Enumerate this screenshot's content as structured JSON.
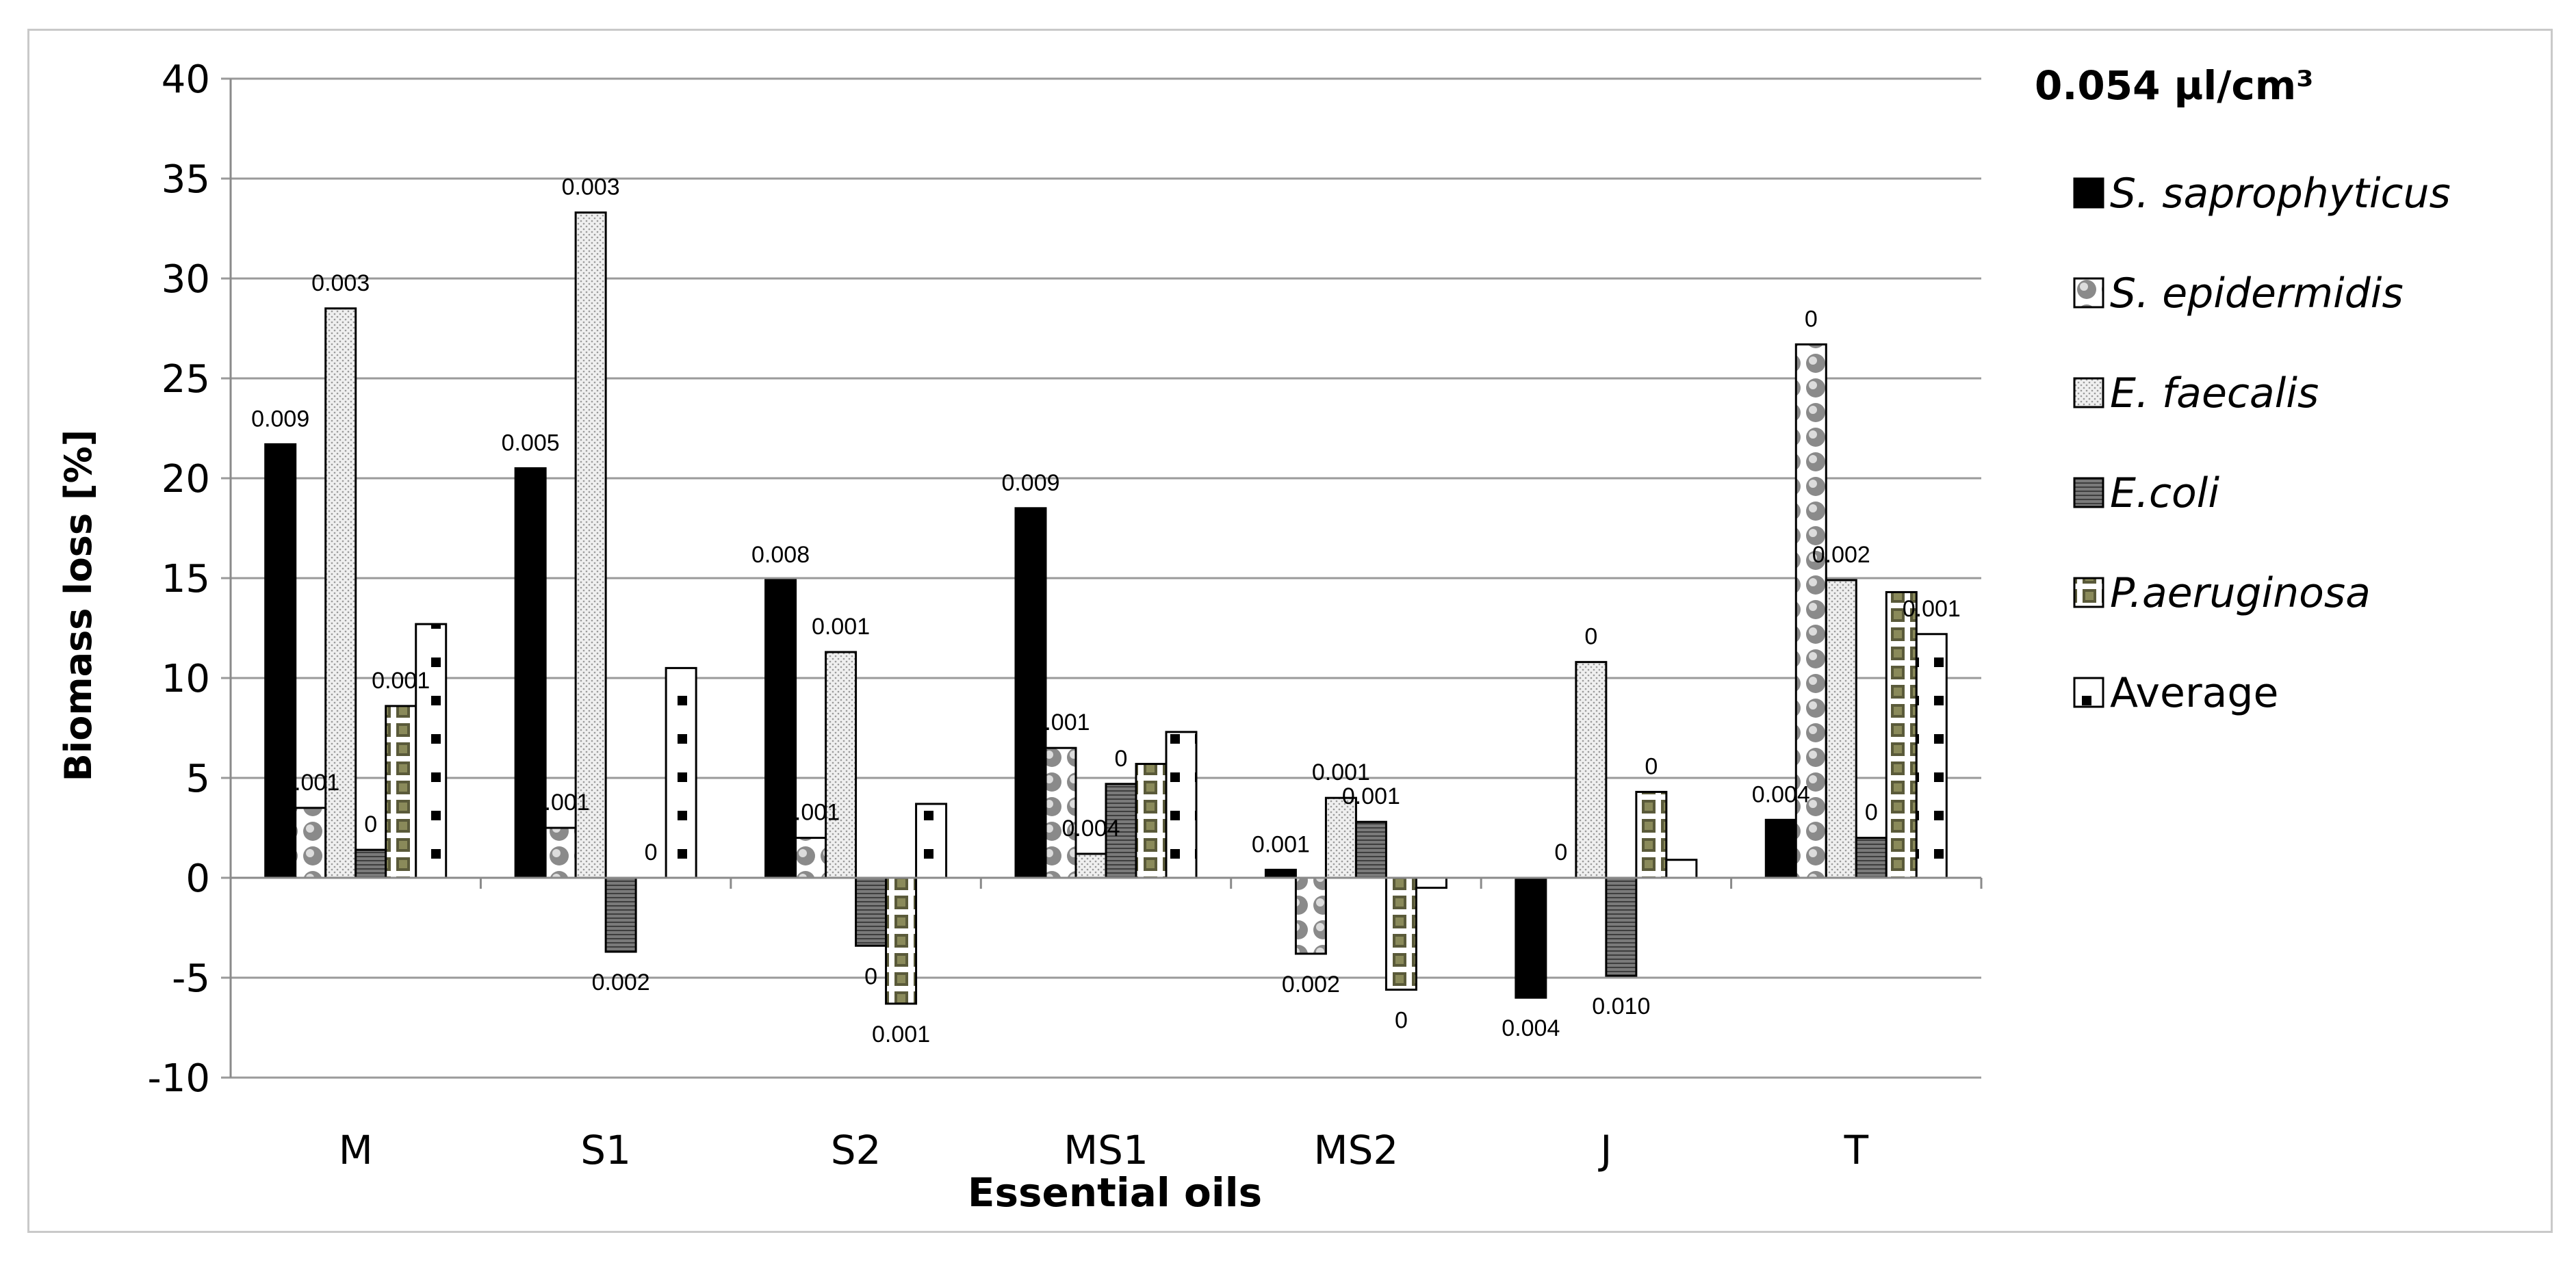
{
  "chart_data": {
    "type": "bar",
    "title": "0.054 µl/cm³",
    "xlabel": "Essential oils",
    "ylabel": "Biomass loss [%]",
    "ylim": [
      -10,
      40
    ],
    "yticks": [
      -10,
      -5,
      0,
      5,
      10,
      15,
      20,
      25,
      30,
      35,
      40
    ],
    "grid": true,
    "legend_position": "right",
    "categories": [
      "M",
      "S1",
      "S2",
      "MS1",
      "MS2",
      "J",
      "T"
    ],
    "series": [
      {
        "name": "S. saprophyticus",
        "italic": true,
        "pattern": "solid",
        "values": [
          21.7,
          20.5,
          14.9,
          18.5,
          0.4,
          -6.0,
          2.9
        ],
        "labels": [
          "0.009",
          "0.005",
          "0.008",
          "0.009",
          "0.001",
          "0.004",
          "0.004"
        ]
      },
      {
        "name": "S. epidermidis",
        "italic": true,
        "pattern": "spheres",
        "values": [
          3.5,
          2.5,
          2.0,
          6.5,
          -3.8,
          0,
          26.7
        ],
        "labels": [
          "0.001",
          "0.001",
          "0.001",
          "0.001",
          "0.002",
          "0",
          "0"
        ]
      },
      {
        "name": "E. faecalis",
        "italic": true,
        "pattern": "dots",
        "values": [
          28.5,
          33.3,
          11.3,
          1.2,
          4.0,
          10.8,
          14.9
        ],
        "labels": [
          "0.003",
          "0.003",
          "0.001",
          "0.004",
          "0.001",
          "0",
          "0.002"
        ]
      },
      {
        "name": "E.coli",
        "italic": true,
        "pattern": "hlines",
        "values": [
          1.4,
          -3.7,
          -3.4,
          4.7,
          2.8,
          -4.9,
          2.0
        ],
        "labels": [
          "0",
          "0.002",
          "0",
          "0",
          "0.001",
          "0.010",
          "0"
        ]
      },
      {
        "name": "P.aeruginosa",
        "italic": true,
        "pattern": "grid",
        "values": [
          8.6,
          0,
          -6.3,
          5.7,
          -5.6,
          4.3,
          14.3
        ],
        "labels": [
          "0.001",
          "0",
          "0.001",
          "",
          "0",
          "0",
          ""
        ]
      },
      {
        "name": "Average",
        "italic": false,
        "pattern": "squares",
        "values": [
          12.7,
          10.5,
          3.7,
          7.3,
          -0.5,
          0.9,
          12.2
        ],
        "labels": [
          "",
          "",
          "",
          "",
          "",
          "",
          "0.001"
        ]
      }
    ]
  }
}
